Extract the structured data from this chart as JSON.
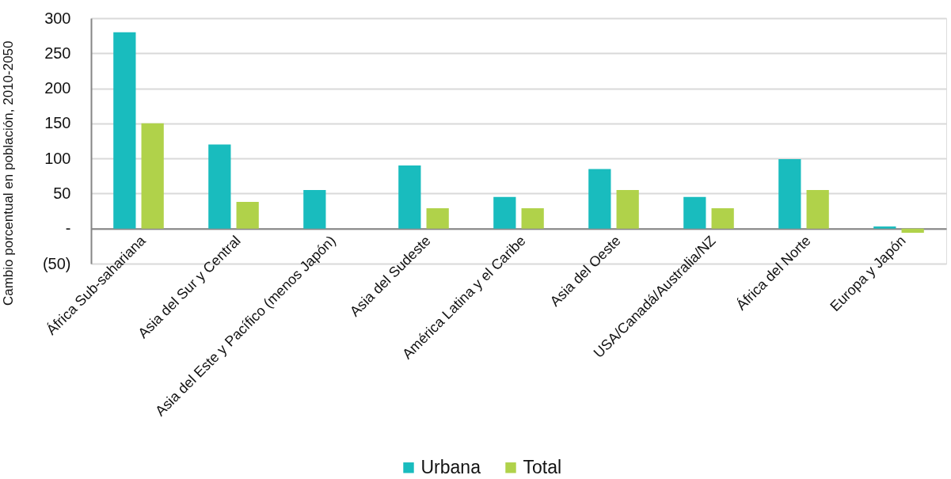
{
  "chart_data": {
    "type": "bar",
    "ylabel": "Cambio porcentual en población, 2010-2050",
    "categories": [
      "África Sub-sahariana",
      "Asia del Sur y Central",
      "Asia del Este y Pacífico (menos Japón)",
      "Asia del Sudeste",
      "América Latina y el Caribe",
      "Asia del Oeste",
      "USA/Canadá/Australia/NZ",
      "África del Norte",
      "Europa y Japón"
    ],
    "series": [
      {
        "name": "Urbana",
        "color": "#19bcbe",
        "values": [
          280,
          120,
          55,
          90,
          45,
          85,
          45,
          99,
          3
        ]
      },
      {
        "name": "Total",
        "color": "#b0d24a",
        "values": [
          150,
          38,
          null,
          29,
          29,
          55,
          29,
          55,
          -6
        ]
      }
    ],
    "ylim": [
      -50,
      300
    ],
    "yticks": [
      {
        "value": -50,
        "label": "(50)"
      },
      {
        "value": 0,
        "label": "-"
      },
      50,
      100,
      150,
      200,
      250,
      300
    ],
    "grid": "y",
    "legend": "bottom"
  }
}
